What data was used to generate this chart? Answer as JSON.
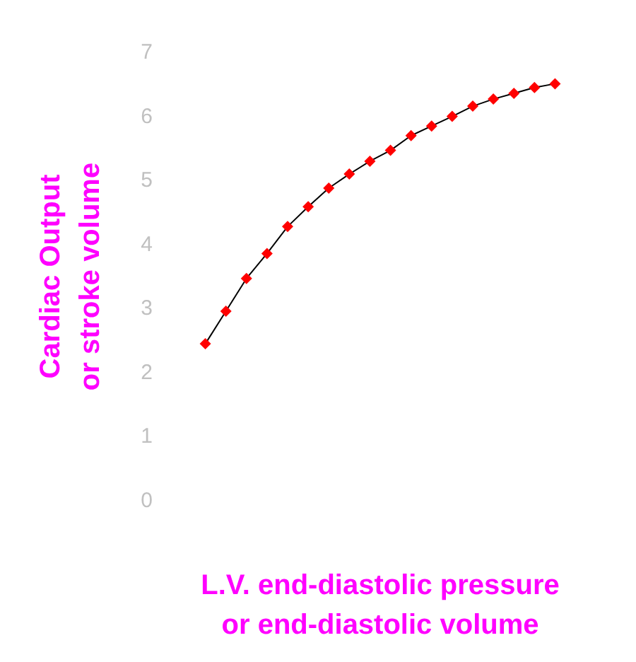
{
  "chart_data": {
    "type": "line",
    "xlabel": "L.V. end-diastolic pressure\nor end-diastolic volume",
    "ylabel": "Cardiac Output\nor stroke volume",
    "categories": [
      null,
      null,
      null,
      null,
      null,
      null,
      null,
      null,
      null,
      null,
      null,
      null,
      null,
      null,
      null,
      null,
      null,
      null
    ],
    "series": [
      {
        "color": "#000000",
        "colors": [
          "#ff0000",
          "#ff0000",
          "#ff0000",
          "#ff0000",
          "#ff0000",
          "#ff0000",
          "#ff0000",
          "#ff0000",
          "#ff0000",
          "#ff0000",
          "#ff0000",
          "#ff0000",
          "#ff0000",
          "#ff0000",
          "#ff0000",
          "#ff0000",
          "#ff0000",
          "#ff0000"
        ],
        "values": [
          2.45,
          2.96,
          3.47,
          3.86,
          4.28,
          4.59,
          4.88,
          5.1,
          5.3,
          5.47,
          5.7,
          5.85,
          6.0,
          6.16,
          6.27,
          6.36,
          6.45,
          6.51
        ]
      }
    ],
    "ylim": [
      0,
      7
    ],
    "yticks": [
      0,
      1,
      2,
      3,
      4,
      5,
      6,
      7
    ],
    "grid": false,
    "marker": "diamond",
    "line_style": "solid",
    "tick_labels": "y"
  }
}
